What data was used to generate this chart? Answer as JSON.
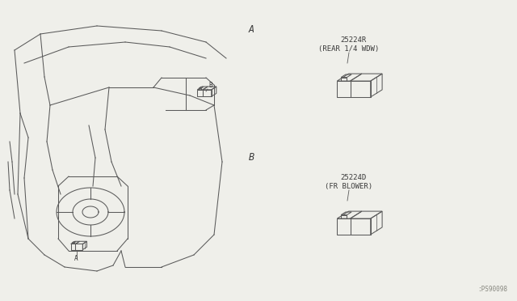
{
  "bg_color": "#efefea",
  "line_color": "#5a5a5a",
  "text_color": "#3a3a3a",
  "part1_label": "25224R",
  "part1_sublabel": "(REAR 1/4 WDW)",
  "part2_label": "25224D",
  "part2_sublabel": "(FR BLOWER)",
  "ref_label_A": "A",
  "ref_label_B": "B",
  "watermark": ":PS90098",
  "font_size_label": 6.5,
  "font_size_ref": 8.5,
  "font_size_wm": 5.5
}
